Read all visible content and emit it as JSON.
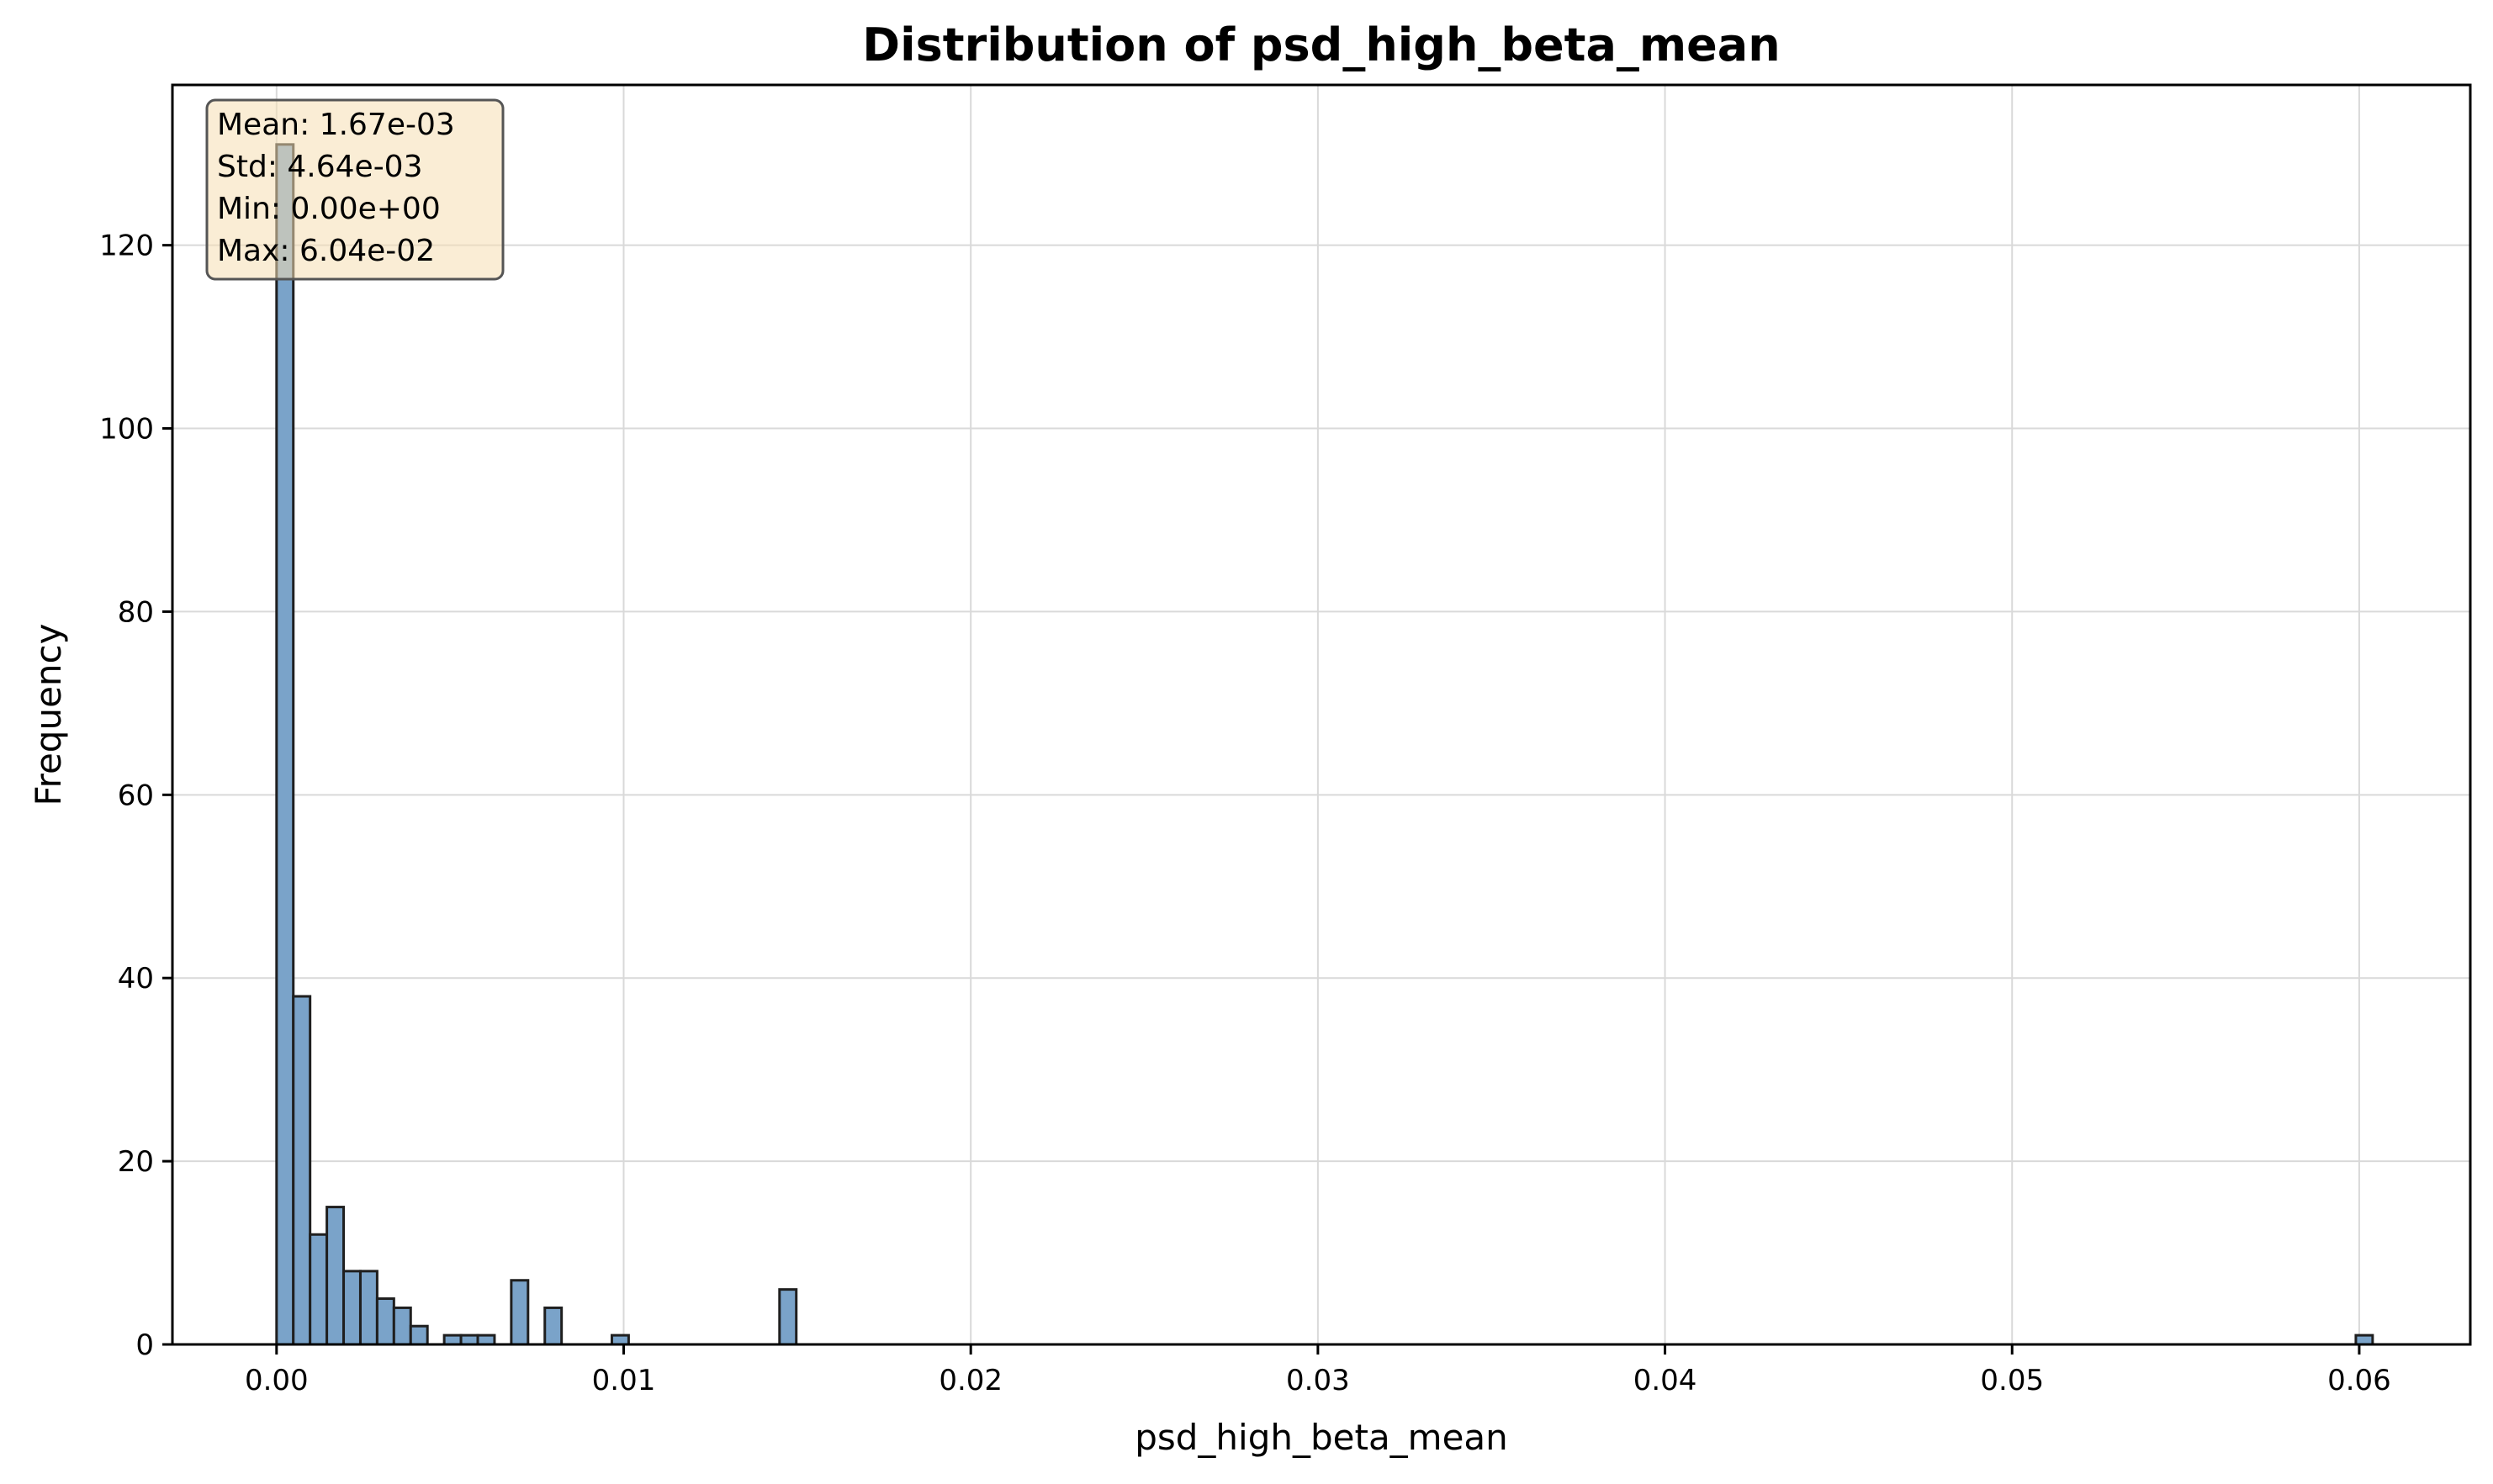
{
  "chart_data": {
    "type": "bar",
    "title": "Distribution of psd_high_beta_mean",
    "xlabel": "psd_high_beta_mean",
    "ylabel": "Frequency",
    "xlim": [
      -0.003,
      0.0632
    ],
    "ylim": [
      0,
      137.5
    ],
    "x_ticks": [
      {
        "value": 0.0,
        "label": "0.00"
      },
      {
        "value": 0.01,
        "label": "0.01"
      },
      {
        "value": 0.02,
        "label": "0.02"
      },
      {
        "value": 0.03,
        "label": "0.03"
      },
      {
        "value": 0.04,
        "label": "0.04"
      },
      {
        "value": 0.05,
        "label": "0.05"
      },
      {
        "value": 0.06,
        "label": "0.06"
      }
    ],
    "y_ticks": [
      {
        "value": 0,
        "label": "0"
      },
      {
        "value": 20,
        "label": "20"
      },
      {
        "value": 40,
        "label": "40"
      },
      {
        "value": 60,
        "label": "60"
      },
      {
        "value": 80,
        "label": "80"
      },
      {
        "value": 100,
        "label": "100"
      },
      {
        "value": 120,
        "label": "120"
      }
    ],
    "grid": true,
    "bar_color": "#7aa3c9",
    "bar_edge_color": "#1f1f1f",
    "bin_width": 0.000483,
    "bins": [
      {
        "x": 0.0,
        "count": 131
      },
      {
        "x": 0.000483,
        "count": 38
      },
      {
        "x": 0.000966,
        "count": 12
      },
      {
        "x": 0.001449,
        "count": 15
      },
      {
        "x": 0.001932,
        "count": 8
      },
      {
        "x": 0.002415,
        "count": 8
      },
      {
        "x": 0.002898,
        "count": 5
      },
      {
        "x": 0.003381,
        "count": 4
      },
      {
        "x": 0.003864,
        "count": 2
      },
      {
        "x": 0.00483,
        "count": 1
      },
      {
        "x": 0.005313,
        "count": 1
      },
      {
        "x": 0.005796,
        "count": 1
      },
      {
        "x": 0.006762,
        "count": 7
      },
      {
        "x": 0.007728,
        "count": 4
      },
      {
        "x": 0.00966,
        "count": 1
      },
      {
        "x": 0.01449,
        "count": 6
      },
      {
        "x": 0.059903,
        "count": 1
      }
    ],
    "stats_box": {
      "lines": [
        "Mean: 1.67e-03",
        "Std: 4.64e-03",
        "Min: 0.00e+00",
        "Max: 6.04e-02"
      ],
      "placement": "top-left",
      "fill_color": "#f5deb3",
      "edge_color": "#555555"
    }
  }
}
